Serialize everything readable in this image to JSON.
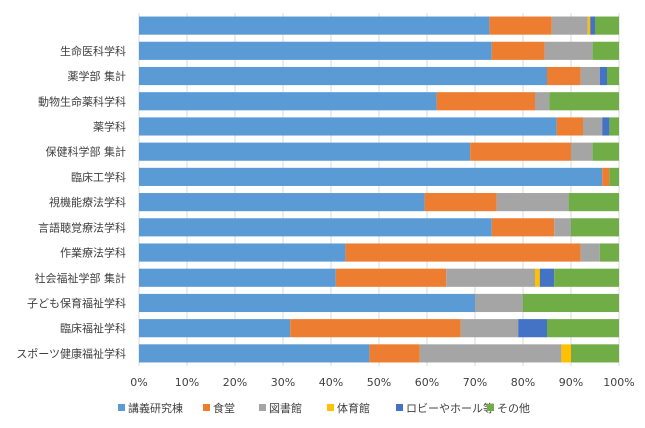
{
  "chart_data": {
    "type": "bar",
    "orientation": "horizontal",
    "stacked": "percent",
    "categories": [
      "",
      "生命医科学科",
      "薬学部 集計",
      "動物生命薬科学科",
      "薬学科",
      "保健科学部 集計",
      "臨床工学科",
      "視機能療法学科",
      "言語聴覚療法学科",
      "作業療法学科",
      "社会福祉学部 集計",
      "子ども保育福祉学科",
      "臨床福祉学科",
      "スポーツ健康福祉学科"
    ],
    "series": [
      {
        "name": "講義研究棟",
        "color": "#5b9bd5",
        "values": [
          73,
          73.5,
          85,
          62,
          87,
          69,
          96.5,
          59.5,
          73.5,
          43,
          41,
          70,
          31.5,
          48
        ]
      },
      {
        "name": "食堂",
        "color": "#ed7d31",
        "values": [
          13,
          11,
          7,
          20.5,
          5.5,
          21,
          1.5,
          15,
          13,
          49,
          23,
          0,
          35.5,
          10.5
        ]
      },
      {
        "name": "図書館",
        "color": "#a5a5a5",
        "values": [
          7.5,
          10,
          4,
          3,
          4,
          4.5,
          0,
          15,
          3.5,
          4,
          18.5,
          10,
          12,
          29.5
        ]
      },
      {
        "name": "体育館",
        "color": "#ffc000",
        "values": [
          0.5,
          0,
          0,
          0,
          0,
          0,
          0,
          0,
          0,
          0,
          1,
          0,
          0,
          2
        ]
      },
      {
        "name": "ロビーやホール等",
        "color": "#4472c4",
        "values": [
          1,
          0,
          1.5,
          0,
          1.5,
          0,
          0,
          0,
          0,
          0,
          3,
          0,
          6,
          0
        ]
      },
      {
        "name": "その他",
        "color": "#70ad47",
        "values": [
          5,
          5.5,
          2.5,
          14.5,
          2,
          5.5,
          2,
          10.5,
          10,
          4,
          13.5,
          20,
          15,
          10
        ]
      }
    ],
    "x_ticks": [
      "0%",
      "10%",
      "20%",
      "30%",
      "40%",
      "50%",
      "60%",
      "70%",
      "80%",
      "90%",
      "100%"
    ],
    "xlim": [
      0,
      100
    ],
    "grid": true,
    "legend_position": "bottom"
  }
}
